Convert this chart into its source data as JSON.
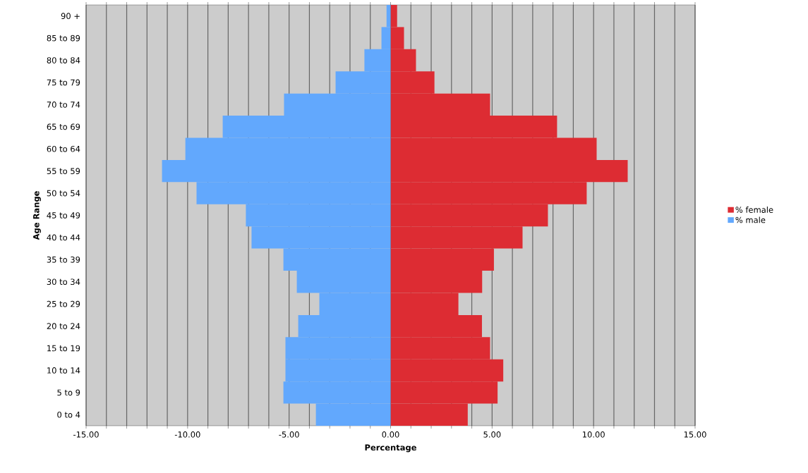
{
  "chart_data": {
    "type": "bar",
    "orientation": "horizontal",
    "xlabel": "Percentage",
    "ylabel": "Age Range",
    "categories": [
      "90 +",
      "85 to 89",
      "80 to 84",
      "75 to 79",
      "70 to 74",
      "65 to 69",
      "60 to 64",
      "55 to 59",
      "50 to 54",
      "45 to 49",
      "40 to 44",
      "35 to 39",
      "30 to 34",
      "25 to 29",
      "20 to 24",
      "15 to 19",
      "10 to 14",
      "5 to 9",
      "0 to 4"
    ],
    "series": [
      {
        "name": "% female",
        "color": "#dd2c33",
        "values": [
          0.32,
          0.66,
          1.25,
          2.16,
          4.9,
          8.2,
          10.15,
          11.68,
          9.66,
          7.75,
          6.5,
          5.09,
          4.51,
          3.34,
          4.5,
          4.9,
          5.55,
          5.27,
          3.8
        ]
      },
      {
        "name": "% male",
        "color": "#62a8fd",
        "values": [
          -0.2,
          -0.45,
          -1.29,
          -2.71,
          -5.25,
          -8.27,
          -10.11,
          -11.26,
          -9.56,
          -7.13,
          -6.85,
          -5.28,
          -4.62,
          -3.51,
          -4.55,
          -5.18,
          -5.18,
          -5.28,
          -3.68
        ]
      }
    ],
    "xlim": [
      -15,
      15
    ],
    "xticks": [
      {
        "value": -15,
        "label": "-15.00"
      },
      {
        "value": -14,
        "label": null
      },
      {
        "value": -13,
        "label": null
      },
      {
        "value": -12,
        "label": null
      },
      {
        "value": -11,
        "label": null
      },
      {
        "value": -10,
        "label": "-10.00"
      },
      {
        "value": -9,
        "label": null
      },
      {
        "value": -8,
        "label": null
      },
      {
        "value": -7,
        "label": null
      },
      {
        "value": -6,
        "label": null
      },
      {
        "value": -5,
        "label": "-5.00"
      },
      {
        "value": -4,
        "label": null
      },
      {
        "value": -3,
        "label": null
      },
      {
        "value": -2,
        "label": null
      },
      {
        "value": -1,
        "label": null
      },
      {
        "value": 0,
        "label": "0.00"
      },
      {
        "value": 1,
        "label": null
      },
      {
        "value": 2,
        "label": null
      },
      {
        "value": 3,
        "label": null
      },
      {
        "value": 4,
        "label": null
      },
      {
        "value": 5,
        "label": "5.00"
      },
      {
        "value": 6,
        "label": null
      },
      {
        "value": 7,
        "label": null
      },
      {
        "value": 8,
        "label": null
      },
      {
        "value": 9,
        "label": null
      },
      {
        "value": 10,
        "label": "10.00"
      },
      {
        "value": 11,
        "label": null
      },
      {
        "value": 12,
        "label": null
      },
      {
        "value": 13,
        "label": null
      },
      {
        "value": 14,
        "label": null
      },
      {
        "value": 15,
        "label": "15.00"
      }
    ],
    "grid": "x",
    "legend": "right",
    "stacked": true
  }
}
